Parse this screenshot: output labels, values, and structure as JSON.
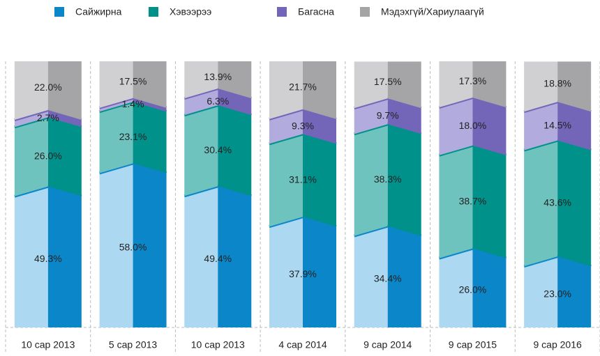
{
  "chart_data": {
    "type": "bar",
    "stacked": true,
    "categories": [
      "10 сар 2013",
      "5 сар 2013",
      "10 сар 2013",
      "4 сар 2014",
      "9 сар 2014",
      "9 сар 2015",
      "9 сар 2016"
    ],
    "ylim": [
      0,
      100
    ],
    "series": [
      {
        "name": "Сайжирна",
        "color": "#0a86c9",
        "shade": "#acd9f1",
        "values": [
          49.3,
          58.0,
          49.4,
          37.9,
          34.4,
          26.0,
          23.0
        ],
        "value_labels": [
          "49.3%",
          "58.0%",
          "49.4%",
          "37.9%",
          "34.4%",
          "26.0%",
          "23.0%"
        ]
      },
      {
        "name": "Хэвээрээ",
        "color": "#00918a",
        "shade": "#6ec3bf",
        "values": [
          26.0,
          23.1,
          30.4,
          31.1,
          38.3,
          38.7,
          43.6
        ],
        "value_labels": [
          "26.0%",
          "23.1%",
          "30.4%",
          "31.1%",
          "38.3%",
          "38.7%",
          "43.6%"
        ]
      },
      {
        "name": "Багасна",
        "color": "#7366b9",
        "shade": "#b2abdd",
        "values": [
          2.7,
          1.4,
          6.3,
          9.3,
          9.7,
          18.0,
          14.5
        ],
        "value_labels": [
          "2.7%",
          "1.4%",
          "6.3%",
          "9.3%",
          "9.7%",
          "18.0%",
          "14.5%"
        ]
      },
      {
        "name": "Мэдэхгүй/Хариулаагүй",
        "color": "#a5a5a8",
        "shade": "#d0d0d2",
        "values": [
          22.0,
          17.5,
          13.9,
          21.7,
          17.5,
          17.3,
          18.8
        ],
        "value_labels": [
          "22.0%",
          "17.5%",
          "13.9%",
          "21.7%",
          "17.5%",
          "17.3%",
          "18.8%"
        ]
      }
    ]
  }
}
